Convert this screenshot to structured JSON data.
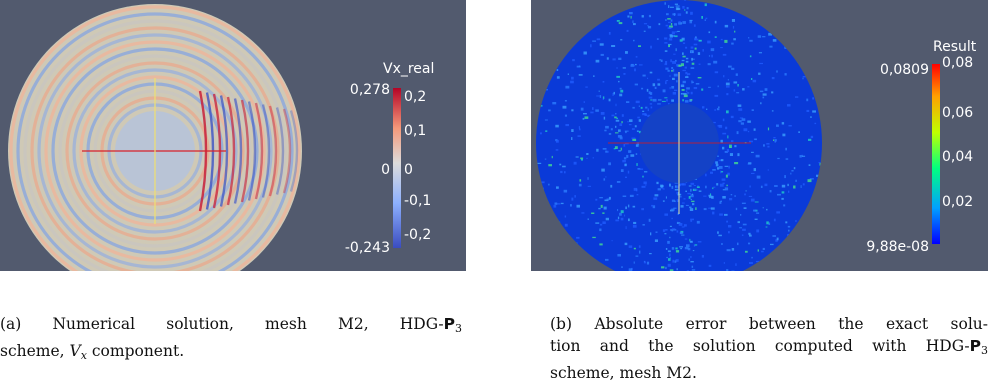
{
  "figure_a": {
    "colorbar": {
      "title": "Vx_real",
      "max_label": "0,278",
      "min_label": "-0,243",
      "zero_label": "0",
      "ticks": [
        "0,2",
        "0,1",
        "0",
        "-0,1",
        "-0,2"
      ],
      "colors": [
        "#3a4cc0",
        "#8db0fe",
        "#dddcdc",
        "#f4987a",
        "#b40426"
      ]
    },
    "caption": {
      "lines": [
        "(a) Numerical solution, mesh M2, HDG-",
        "scheme, ",
        " component."
      ],
      "space_symbol": "P",
      "space_index": "3",
      "var_symbol": "V",
      "var_index": "x"
    }
  },
  "figure_b": {
    "colorbar": {
      "title": "Result",
      "max_label": "0,0809",
      "min_label": "9,88e-08",
      "ticks": [
        "0,08",
        "0,06",
        "0,04",
        "0,02"
      ],
      "colors": [
        "#0000ff",
        "#00a0ff",
        "#00ff80",
        "#c0ff00",
        "#ffa000",
        "#ff0000"
      ]
    },
    "caption": {
      "lines": [
        "(b) Absolute error between the exact solu-",
        "tion and the solution computed with HDG-",
        "scheme, mesh M2."
      ],
      "space_symbol": "P",
      "space_index": "3"
    }
  }
}
